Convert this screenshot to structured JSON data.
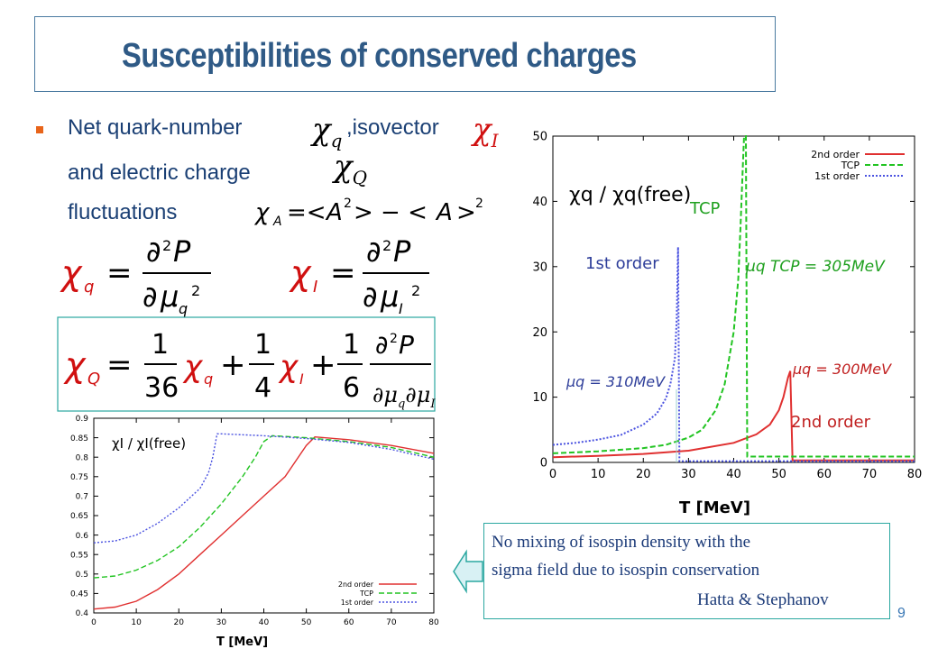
{
  "slide": {
    "title": "Susceptibilities of conserved charges",
    "page_number": "9",
    "bullet": {
      "part1": "Net quark-number",
      "part2": ",isovector",
      "line2": "and electric charge",
      "line3": "fluctuations"
    },
    "callout": {
      "line1": "No mixing of isospin density with the",
      "line2": "sigma field  due to  isospin conservation",
      "line3": "Hatta & Stephanov"
    },
    "colors": {
      "title": "#2f5a86",
      "bullet_text": "#1a3f74",
      "bullet_marker": "#e8641a",
      "box_border": "#2aa7a0"
    }
  },
  "chart_data": [
    {
      "type": "line",
      "ylabel": "χq / χq(free)",
      "xlabel": "T [MeV]",
      "xlim": [
        0,
        80
      ],
      "ylim": [
        0,
        50
      ],
      "xticks": [
        "0",
        "10",
        "20",
        "30",
        "40",
        "50",
        "60",
        "70",
        "80"
      ],
      "yticks": [
        "0",
        "10",
        "20",
        "30",
        "40",
        "50"
      ],
      "legend": [
        "2nd order",
        "TCP",
        "1st order"
      ],
      "legend_position": "top-right",
      "annotations": {
        "tcp": "TCP",
        "first": "1st order",
        "second": "2nd order",
        "mu_tcp": "μq TCP = 305MeV",
        "mu_first": "μq = 310MeV",
        "mu_second": "μq = 300MeV"
      },
      "series": [
        {
          "name": "2nd order",
          "color": "#e03030",
          "x": [
            0,
            10,
            20,
            30,
            40,
            45,
            48,
            50,
            51,
            52,
            52.5,
            53,
            60,
            70,
            80
          ],
          "y": [
            0.8,
            1.0,
            1.3,
            1.8,
            3,
            4.3,
            5.8,
            8,
            10,
            13,
            14,
            0.3,
            0.3,
            0.3,
            0.3
          ]
        },
        {
          "name": "TCP",
          "color": "#22c422",
          "x": [
            0,
            10,
            20,
            25,
            30,
            33,
            36,
            38,
            40,
            41,
            41.5,
            42,
            42.3,
            42.7,
            43,
            50,
            60,
            70,
            80
          ],
          "y": [
            1.4,
            1.7,
            2.2,
            2.7,
            3.8,
            5,
            8,
            12,
            20,
            28,
            36,
            45,
            50,
            50,
            0.9,
            0.9,
            0.9,
            0.9,
            0.9
          ]
        },
        {
          "name": "1st order",
          "color": "#4a52e0",
          "x": [
            0,
            5,
            10,
            15,
            20,
            23,
            25,
            26,
            27,
            27.4,
            27.7,
            28,
            30,
            40,
            50,
            60,
            70,
            80
          ],
          "y": [
            2.7,
            3.0,
            3.5,
            4.2,
            5.8,
            7.5,
            9.8,
            12,
            16,
            22,
            33,
            0.2,
            0.2,
            0.2,
            0.2,
            0.2,
            0.2,
            0.2
          ]
        }
      ]
    },
    {
      "type": "line",
      "ylabel": "χI / χI(free)",
      "xlabel": "T [MeV]",
      "xlim": [
        0,
        80
      ],
      "ylim": [
        0.4,
        0.9
      ],
      "xticks": [
        "0",
        "10",
        "20",
        "30",
        "40",
        "50",
        "60",
        "70",
        "80"
      ],
      "yticks": [
        "0.4",
        "0.45",
        "0.5",
        "0.55",
        "0.6",
        "0.65",
        "0.7",
        "0.75",
        "0.8",
        "0.85",
        "0.9"
      ],
      "legend": [
        "2nd order",
        "TCP",
        "1st order"
      ],
      "legend_position": "bottom-right",
      "series": [
        {
          "name": "2nd order",
          "color": "#e03030",
          "x": [
            0,
            5,
            10,
            15,
            20,
            25,
            30,
            35,
            40,
            45,
            50,
            52,
            60,
            70,
            80
          ],
          "y": [
            0.41,
            0.415,
            0.43,
            0.46,
            0.5,
            0.55,
            0.6,
            0.65,
            0.7,
            0.75,
            0.83,
            0.852,
            0.845,
            0.83,
            0.81
          ]
        },
        {
          "name": "TCP",
          "color": "#22c422",
          "x": [
            0,
            5,
            10,
            15,
            20,
            25,
            30,
            35,
            38,
            40,
            42,
            50,
            60,
            70,
            80
          ],
          "y": [
            0.49,
            0.495,
            0.51,
            0.535,
            0.57,
            0.62,
            0.68,
            0.75,
            0.8,
            0.84,
            0.855,
            0.85,
            0.84,
            0.825,
            0.8
          ]
        },
        {
          "name": "1st order",
          "color": "#4a52e0",
          "x": [
            0,
            5,
            10,
            15,
            20,
            25,
            27,
            28,
            29,
            30,
            40,
            50,
            60,
            70,
            80
          ],
          "y": [
            0.58,
            0.585,
            0.6,
            0.63,
            0.67,
            0.72,
            0.76,
            0.8,
            0.86,
            0.86,
            0.855,
            0.848,
            0.838,
            0.82,
            0.795
          ]
        }
      ]
    }
  ]
}
